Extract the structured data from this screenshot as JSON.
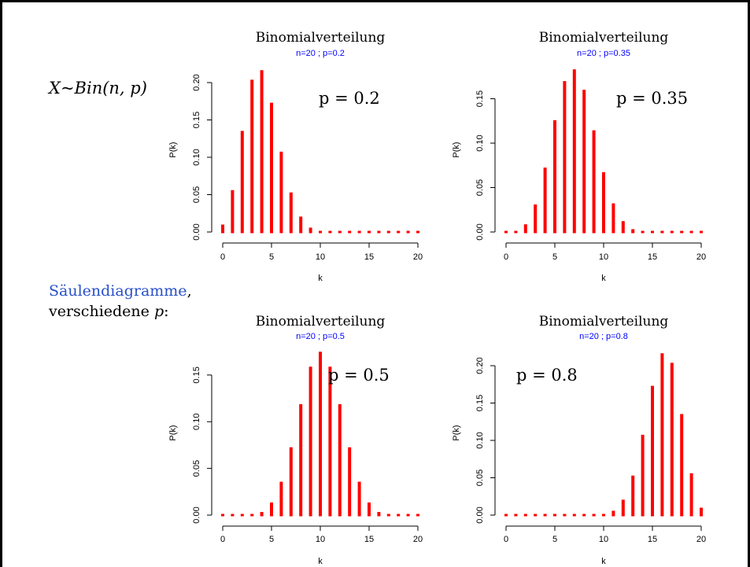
{
  "formula": "X~Bin(n, p)",
  "caption": {
    "link_text": "Säulendiagramme",
    "after_link": ",",
    "line2_prefix": "verschiedene ",
    "line2_var": "p",
    "line2_suffix": ":"
  },
  "colors": {
    "bars": "#ff0000",
    "subtitle": "#0000ff",
    "link": "#2850c8"
  },
  "chart_data": [
    {
      "type": "bar",
      "title": "Binomialverteilung",
      "subtitle": "n=20 ; p=0.2",
      "annotation": "p = 0.2",
      "xlabel": "k",
      "ylabel": "P(k)",
      "x": [
        0,
        1,
        2,
        3,
        4,
        5,
        6,
        7,
        8,
        9,
        10,
        11,
        12,
        13,
        14,
        15,
        16,
        17,
        18,
        19,
        20
      ],
      "values": [
        0.0115,
        0.0576,
        0.1369,
        0.2054,
        0.2182,
        0.1746,
        0.1091,
        0.0545,
        0.0222,
        0.0074,
        0.002,
        0.0005,
        0.0001,
        0,
        0,
        0,
        0,
        0,
        0,
        0,
        0
      ],
      "xlim": [
        0,
        20
      ],
      "ylim": [
        0,
        0.22
      ],
      "xticks": [
        "0",
        "5",
        "10",
        "15",
        "20"
      ],
      "xtick_values": [
        0,
        5,
        10,
        15,
        20
      ],
      "yticks": [
        "0.00",
        "0.05",
        "0.10",
        "0.15",
        "0.20"
      ],
      "ytick_values": [
        0,
        0.05,
        0.1,
        0.15,
        0.2
      ],
      "grid": false
    },
    {
      "type": "bar",
      "title": "Binomialverteilung",
      "subtitle": "n=20 ; p=0.35",
      "annotation": "p = 0.35",
      "xlabel": "k",
      "ylabel": "P(k)",
      "x": [
        0,
        1,
        2,
        3,
        4,
        5,
        6,
        7,
        8,
        9,
        10,
        11,
        12,
        13,
        14,
        15,
        16,
        17,
        18,
        19,
        20
      ],
      "values": [
        0.0002,
        0.002,
        0.01,
        0.0323,
        0.0738,
        0.1272,
        0.1712,
        0.1844,
        0.1614,
        0.1158,
        0.0686,
        0.0336,
        0.0136,
        0.0045,
        0.0012,
        0.0003,
        0.0,
        0,
        0,
        0,
        0
      ],
      "xlim": [
        0,
        20
      ],
      "ylim": [
        0,
        0.185
      ],
      "xticks": [
        "0",
        "5",
        "10",
        "15",
        "20"
      ],
      "xtick_values": [
        0,
        5,
        10,
        15,
        20
      ],
      "yticks": [
        "0.00",
        "0.05",
        "0.10",
        "0.15"
      ],
      "ytick_values": [
        0,
        0.05,
        0.1,
        0.15
      ],
      "grid": false
    },
    {
      "type": "bar",
      "title": "Binomialverteilung",
      "subtitle": "n=20 ; p=0.5",
      "annotation": "p = 0.5",
      "xlabel": "k",
      "ylabel": "P(k)",
      "x": [
        0,
        1,
        2,
        3,
        4,
        5,
        6,
        7,
        8,
        9,
        10,
        11,
        12,
        13,
        14,
        15,
        16,
        17,
        18,
        19,
        20
      ],
      "values": [
        0.0,
        0.0,
        0.0002,
        0.0011,
        0.0046,
        0.0148,
        0.037,
        0.0739,
        0.1201,
        0.1602,
        0.1762,
        0.1602,
        0.1201,
        0.0739,
        0.037,
        0.0148,
        0.0046,
        0.0011,
        0.0002,
        0.0,
        0.0
      ],
      "xlim": [
        0,
        20
      ],
      "ylim": [
        0,
        0.176
      ],
      "xticks": [
        "0",
        "5",
        "10",
        "15",
        "20"
      ],
      "xtick_values": [
        0,
        5,
        10,
        15,
        20
      ],
      "yticks": [
        "0.00",
        "0.05",
        "0.10",
        "0.15"
      ],
      "ytick_values": [
        0,
        0.05,
        0.1,
        0.15
      ],
      "grid": false
    },
    {
      "type": "bar",
      "title": "Binomialverteilung",
      "subtitle": "n=20 ; p=0.8",
      "annotation": "p = 0.8",
      "xlabel": "k",
      "ylabel": "P(k)",
      "x": [
        0,
        1,
        2,
        3,
        4,
        5,
        6,
        7,
        8,
        9,
        10,
        11,
        12,
        13,
        14,
        15,
        16,
        17,
        18,
        19,
        20
      ],
      "values": [
        0,
        0,
        0,
        0,
        0,
        0,
        0,
        0.0,
        0.0001,
        0.0005,
        0.002,
        0.0074,
        0.0222,
        0.0545,
        0.1091,
        0.1746,
        0.2182,
        0.2054,
        0.1369,
        0.0576,
        0.0115
      ],
      "xlim": [
        0,
        20
      ],
      "ylim": [
        0,
        0.22
      ],
      "xticks": [
        "0",
        "5",
        "10",
        "15",
        "20"
      ],
      "xtick_values": [
        0,
        5,
        10,
        15,
        20
      ],
      "yticks": [
        "0.00",
        "0.05",
        "0.10",
        "0.15",
        "0.20"
      ],
      "ytick_values": [
        0,
        0.05,
        0.1,
        0.15,
        0.2
      ],
      "grid": false
    }
  ]
}
